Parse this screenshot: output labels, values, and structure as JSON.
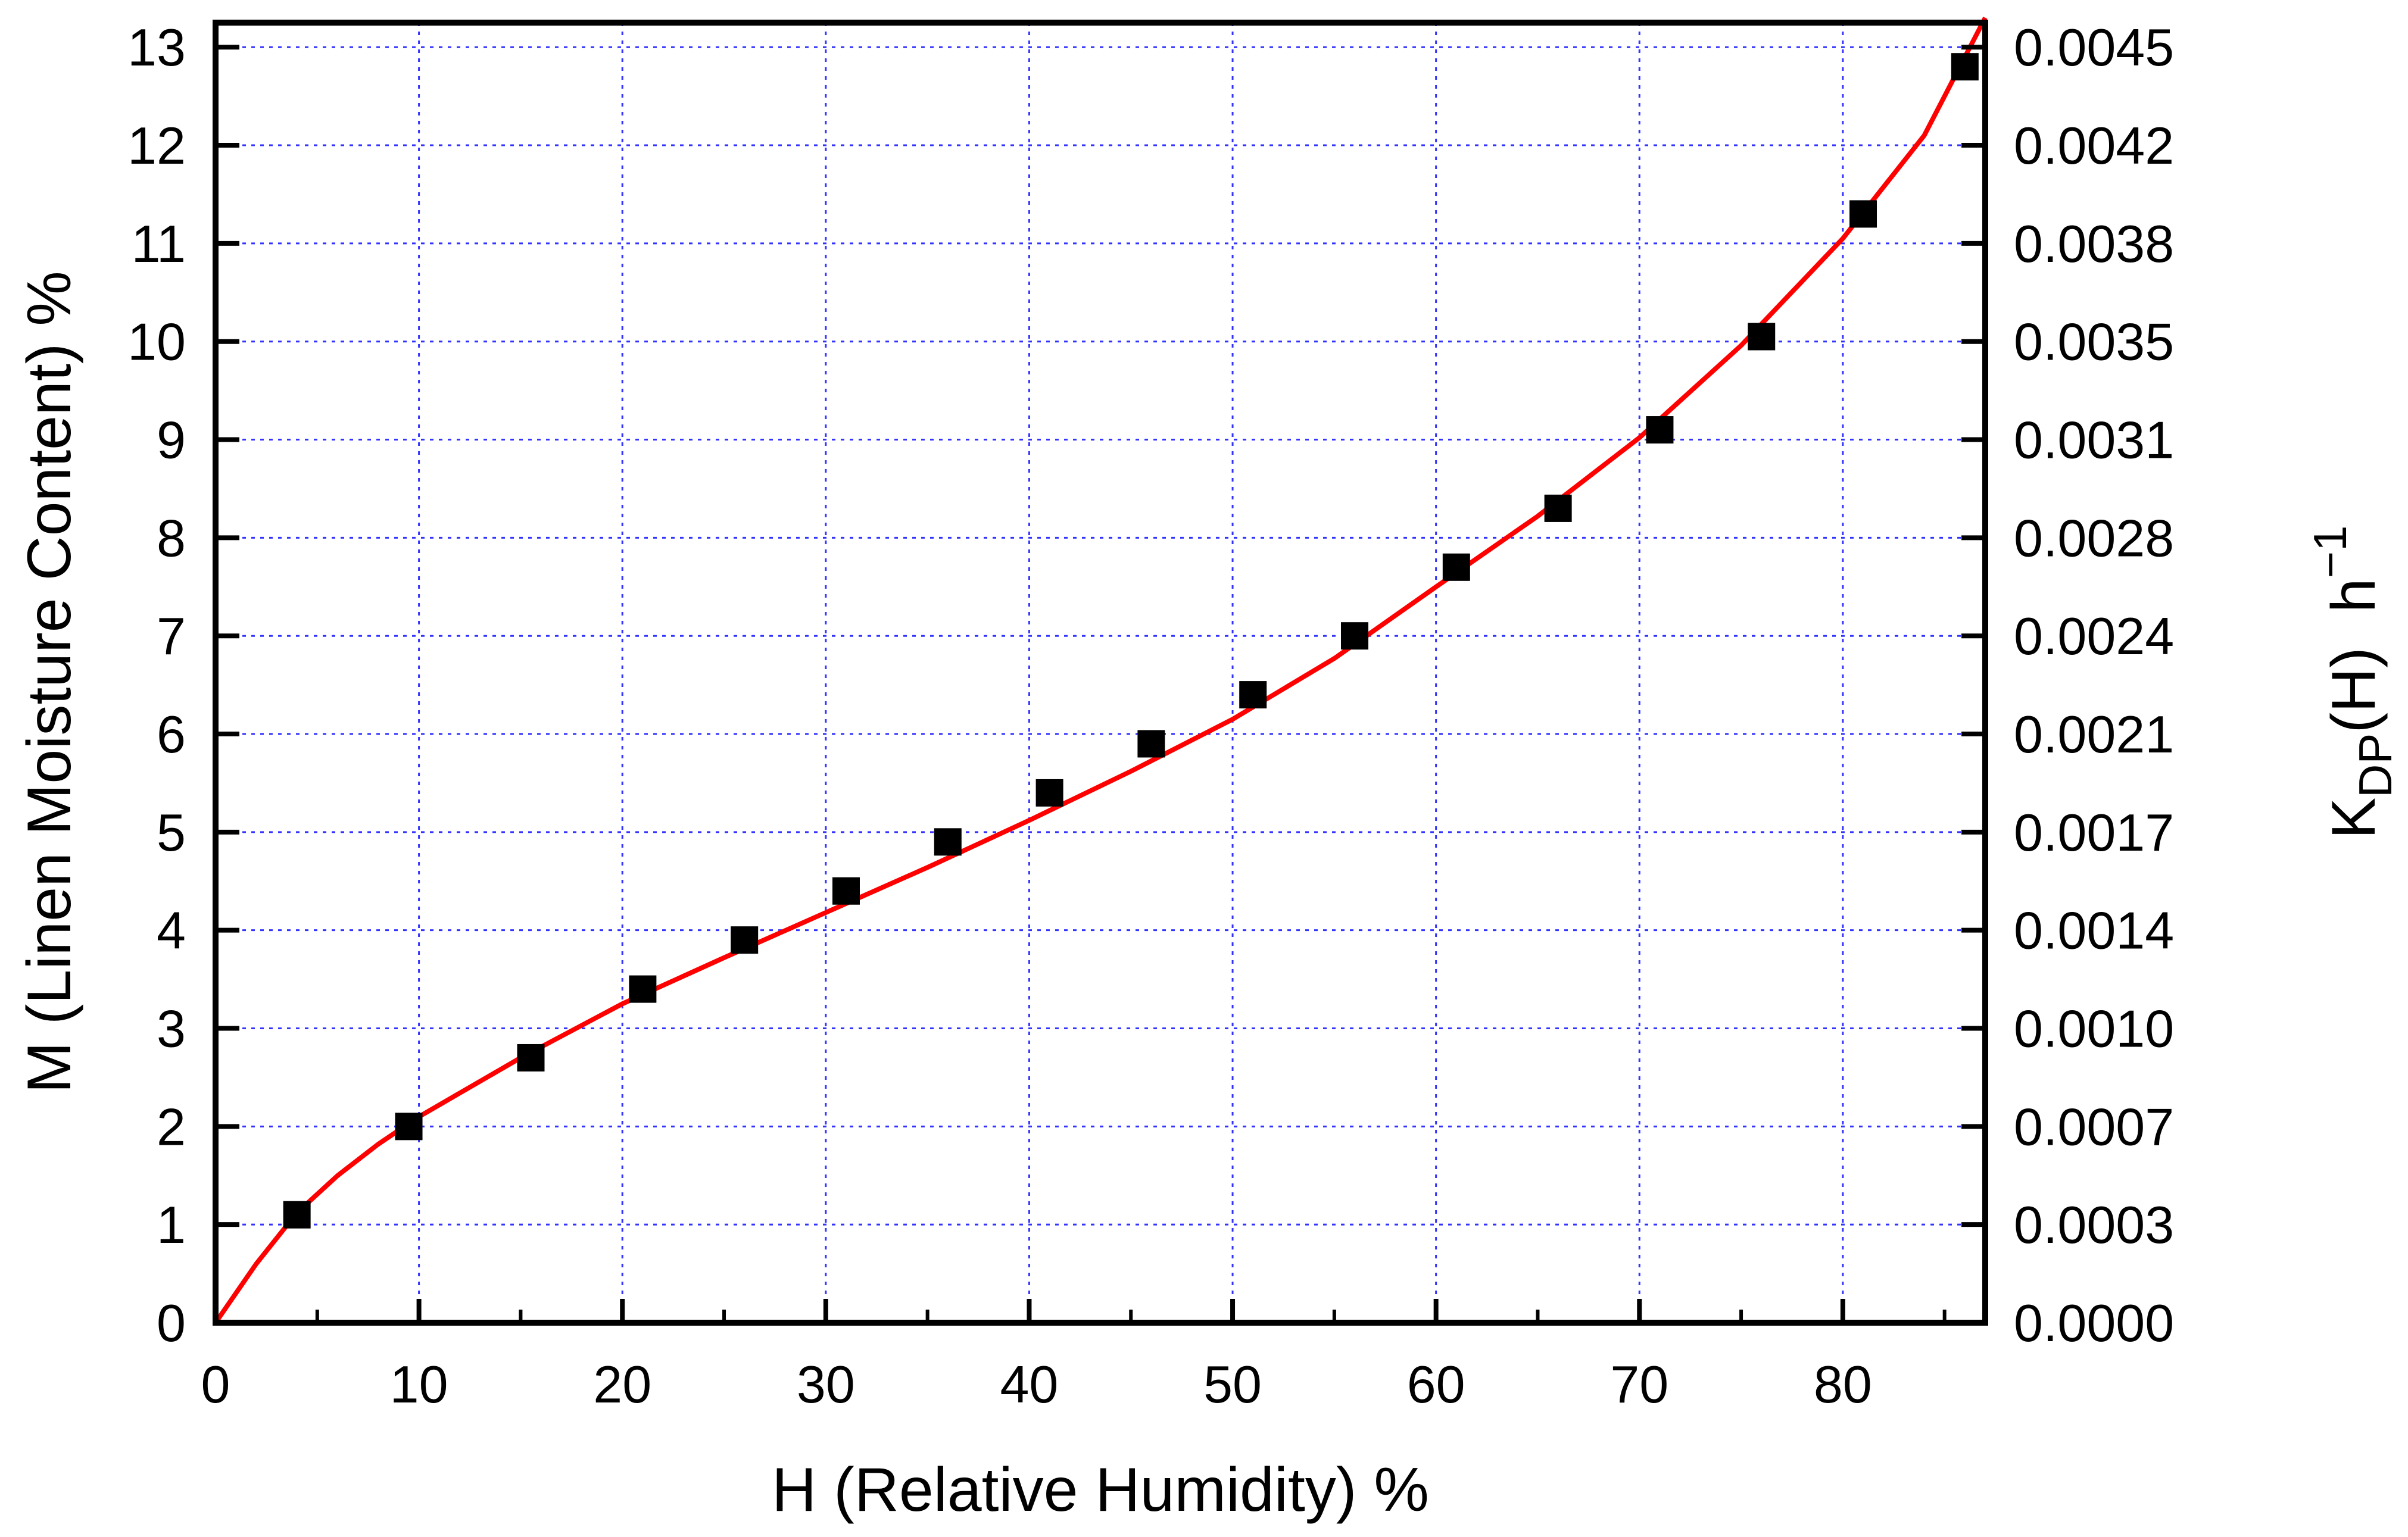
{
  "chart_data": {
    "type": "scatter",
    "title": "",
    "xlabel": "H (Relative Humidity) %",
    "ylabel": "M (Linen Moisture Content) %",
    "y2label": {
      "base": "K",
      "subscript": "DP",
      "suffix": "(H)  h",
      "superscript": "−1"
    },
    "xlim": [
      0,
      87
    ],
    "ylim": [
      0,
      13.25
    ],
    "x_ticks": [
      "0",
      "10",
      "20",
      "30",
      "40",
      "50",
      "60",
      "70",
      "80"
    ],
    "y_ticks": [
      "0",
      "1",
      "2",
      "3",
      "4",
      "5",
      "6",
      "7",
      "8",
      "9",
      "10",
      "11",
      "12",
      "13"
    ],
    "y2_ticks": [
      "0.0000",
      "0.0003",
      "0.0007",
      "0.0010",
      "0.0014",
      "0.0017",
      "0.0021",
      "0.0024",
      "0.0028",
      "0.0031",
      "0.0035",
      "0.0038",
      "0.0042",
      "0.0045"
    ],
    "grid": true,
    "series": [
      {
        "type": "scatter",
        "marker": "square",
        "color": "#000000",
        "x": [
          4,
          9.5,
          15.5,
          21,
          26,
          31,
          36,
          41,
          46,
          51,
          56,
          61,
          66,
          71,
          76,
          81,
          86
        ],
        "y": [
          1.1,
          2.0,
          2.7,
          3.4,
          3.9,
          4.4,
          4.9,
          5.4,
          5.9,
          6.4,
          7.0,
          7.7,
          8.3,
          9.1,
          10.05,
          11.3,
          12.8
        ]
      },
      {
        "type": "line",
        "color": "#ff0000",
        "x": [
          0,
          2,
          4,
          6,
          8,
          10,
          12,
          15,
          20,
          25,
          30,
          35,
          40,
          45,
          50,
          55,
          60,
          65,
          70,
          75,
          80,
          84,
          87
        ],
        "y": [
          0.0,
          0.6,
          1.12,
          1.5,
          1.82,
          2.1,
          2.34,
          2.7,
          3.25,
          3.72,
          4.18,
          4.64,
          5.12,
          5.62,
          6.15,
          6.77,
          7.5,
          8.22,
          9.02,
          9.96,
          11.05,
          12.1,
          13.3
        ]
      }
    ],
    "colors": {
      "grid": "#3333ff",
      "fit_line": "#ff0000",
      "markers": "#000000",
      "axes": "#000000"
    }
  }
}
